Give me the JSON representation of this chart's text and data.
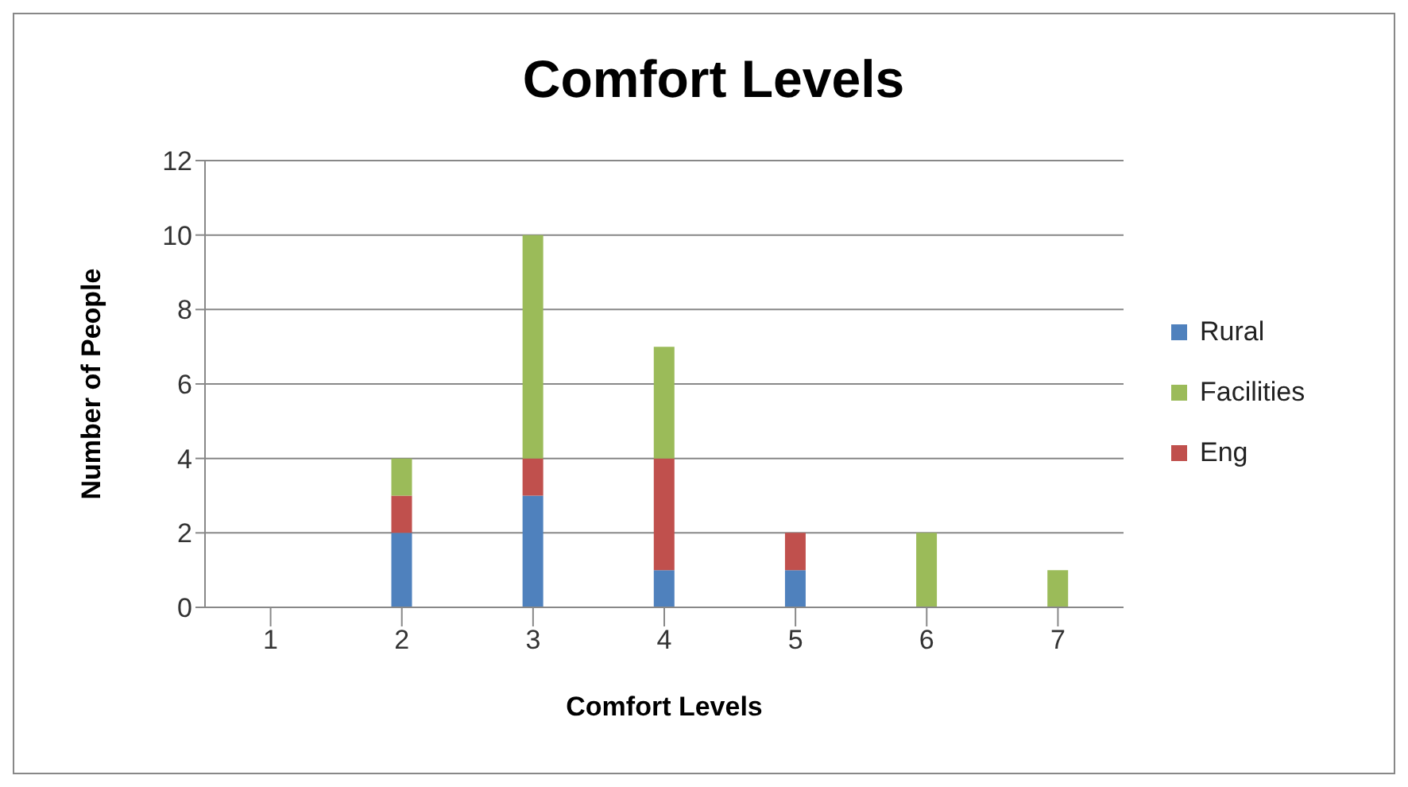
{
  "chart_data": {
    "type": "bar",
    "title": "Comfort Levels",
    "xlabel": "Comfort Levels",
    "ylabel": "Number of People",
    "categories": [
      "1",
      "2",
      "3",
      "4",
      "5",
      "6",
      "7"
    ],
    "series": [
      {
        "name": "Rural",
        "color": "#4f81bd",
        "values": [
          0,
          2,
          3,
          1,
          1,
          0,
          0
        ]
      },
      {
        "name": "Eng",
        "color": "#c0504d",
        "values": [
          0,
          1,
          1,
          3,
          1,
          0,
          0
        ]
      },
      {
        "name": "Facilities",
        "color": "#9bbb59",
        "values": [
          0,
          1,
          6,
          3,
          0,
          2,
          1
        ]
      }
    ],
    "stacked": true,
    "ylim": [
      0,
      12
    ],
    "yticks": [
      0,
      2,
      4,
      6,
      8,
      10,
      12
    ],
    "grid": "y",
    "legend": "right"
  }
}
